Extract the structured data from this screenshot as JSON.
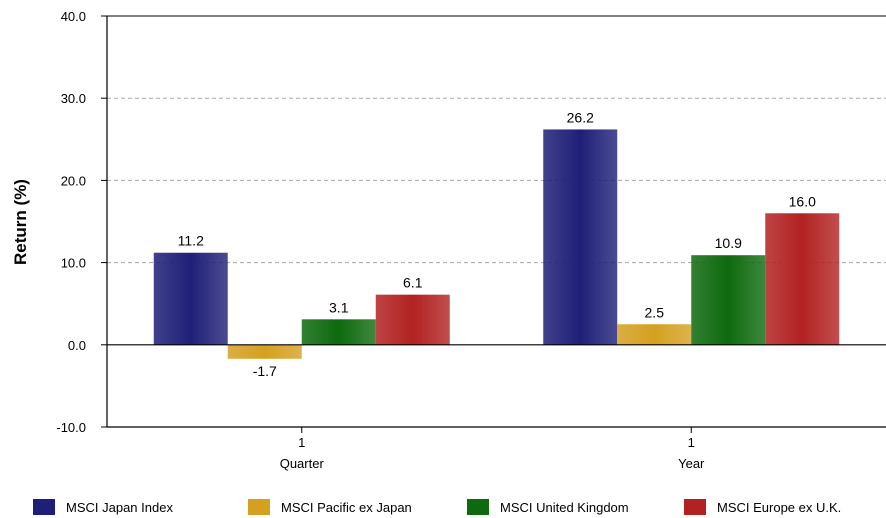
{
  "chart_data": {
    "type": "bar",
    "ylabel": "Return (%)",
    "xlabel": "",
    "ylim": [
      -10,
      40
    ],
    "yticks": [
      "40.0",
      "30.0",
      "20.0",
      "10.0",
      "0.0",
      "-10.0"
    ],
    "ytick_values": [
      40,
      30,
      20,
      10,
      0,
      -10
    ],
    "grid": "horizontal dashed",
    "categories": [
      {
        "line1": "1",
        "line2": "Quarter"
      },
      {
        "line1": "1",
        "line2": "Year"
      }
    ],
    "series": [
      {
        "name": "MSCI Japan Index",
        "values": [
          11.2,
          26.2
        ],
        "labels": [
          "11.2",
          "26.2"
        ],
        "color": "#1f1f78"
      },
      {
        "name": "MSCI Pacific ex Japan",
        "values": [
          -1.7,
          2.5
        ],
        "labels": [
          "-1.7",
          "2.5"
        ],
        "color": "#d4a020"
      },
      {
        "name": "MSCI United Kingdom",
        "values": [
          3.1,
          10.9
        ],
        "labels": [
          "3.1",
          "10.9"
        ],
        "color": "#0e6a0e"
      },
      {
        "name": "MSCI Europe ex U.K.",
        "values": [
          6.1,
          16.0
        ],
        "labels": [
          "6.1",
          "16.0"
        ],
        "color": "#b22222"
      }
    ],
    "legend_position": "bottom"
  }
}
